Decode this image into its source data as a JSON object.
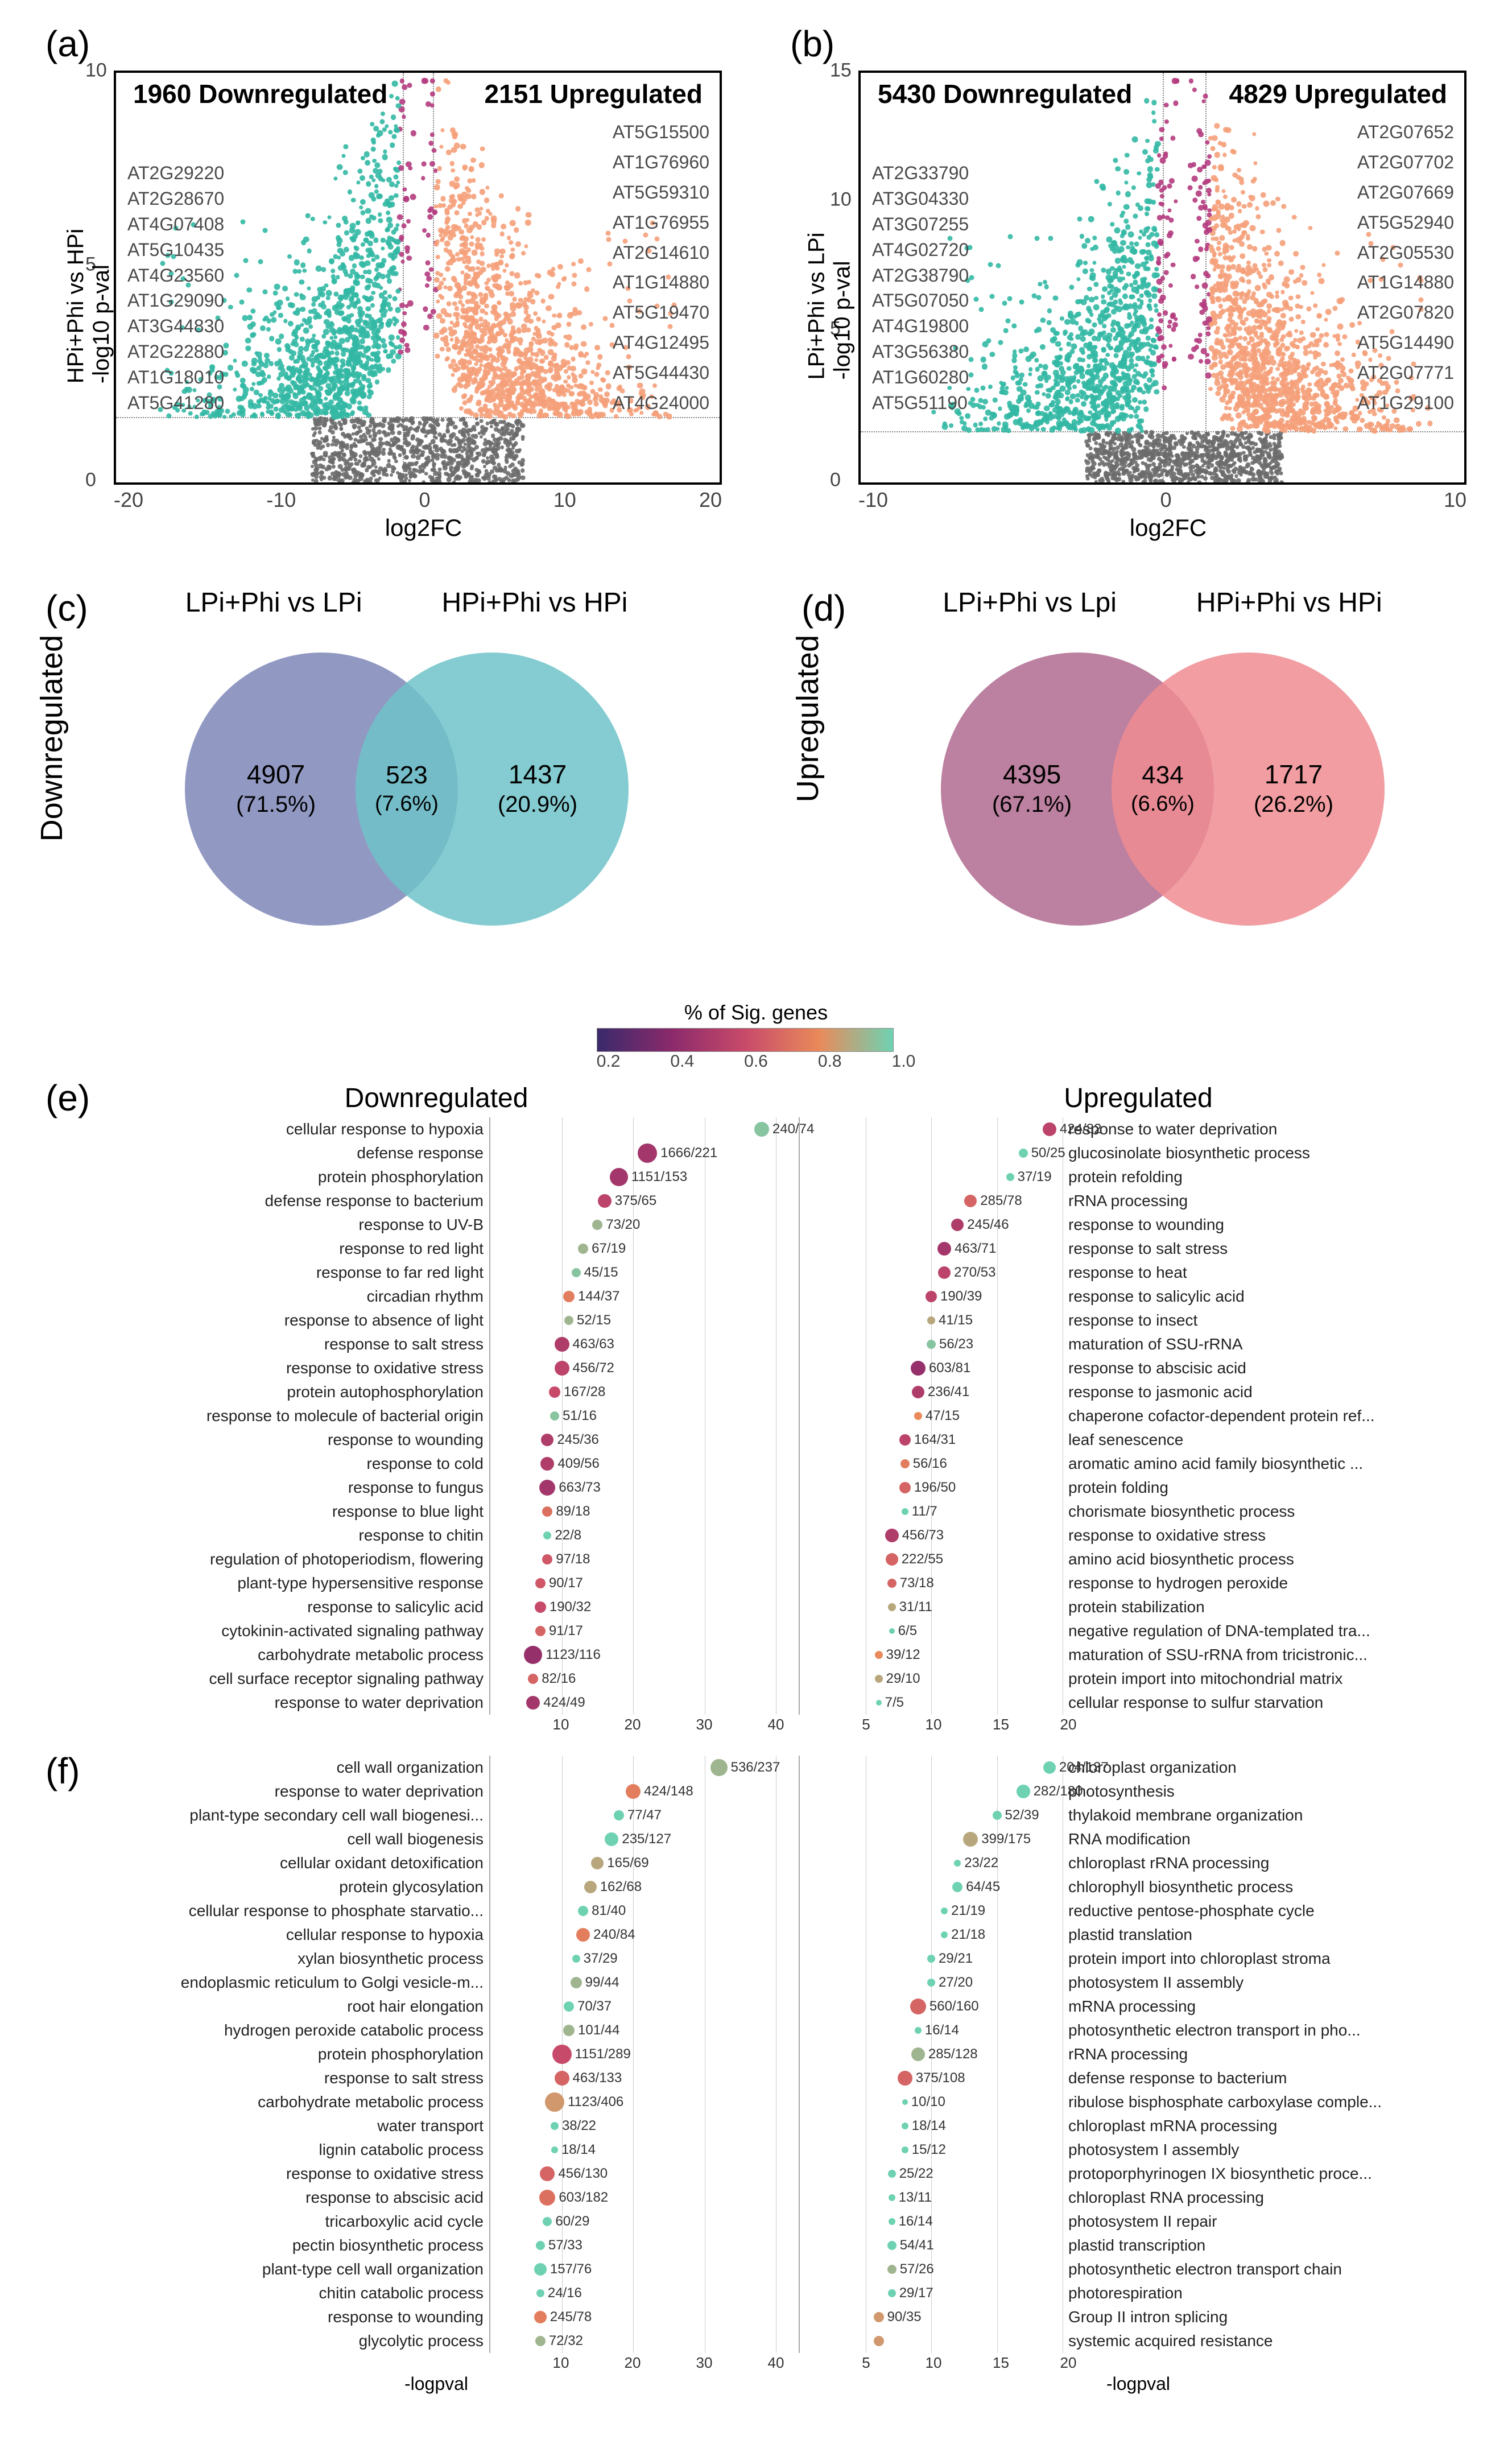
{
  "panels": {
    "a": "(a)",
    "b": "(b)",
    "c": "(c)",
    "d": "(d)",
    "e": "(e)",
    "f": "(f)"
  },
  "colors": {
    "volcano_down": "#32b8a4",
    "volcano_up": "#f5a07a",
    "volcano_mid": "#b43b7e",
    "volcano_ns": "#6b6b6b",
    "venn_c_left": "#7e87b8",
    "venn_c_right": "#6fc3c9",
    "venn_c_mid": "#5a99af",
    "venn_d_left": "#b06a8f",
    "venn_d_right": "#ef8c92",
    "venn_d_mid": "#c05a63",
    "go_gradient": [
      "#3a2a6b",
      "#8a2a6b",
      "#c84a6a",
      "#e98a5a",
      "#6ed2b2"
    ],
    "text": "#000000",
    "grid": "#cccccc"
  },
  "volcano_a": {
    "ylabel": "HPi+Phi vs HPi\n-log10 p-val",
    "xlabel": "log2FC",
    "down_title": "1960 Downregulated",
    "up_title": "2151 Upregulated",
    "xlim": [
      -20,
      20
    ],
    "xticks": [
      -20,
      -10,
      0,
      10,
      20
    ],
    "ylim": [
      0,
      12.5
    ],
    "yticks": [
      0,
      5,
      10
    ],
    "pval_threshold_y": 2.0,
    "fc_threshold_x": 1.0,
    "genes_left": [
      "AT2G29220",
      "AT2G28670",
      "AT4G07408",
      "AT5G10435",
      "AT4G23560",
      "AT1G29090",
      "AT3G44830",
      "AT2G22880",
      "AT1G18010",
      "AT5G41280"
    ],
    "genes_right": [
      "AT5G15500",
      "AT1G76960",
      "AT5G59310",
      "AT1G76955",
      "AT2G14610",
      "AT1G14880",
      "AT5G19470",
      "AT4G12495",
      "AT5G44430",
      "AT4G24000"
    ]
  },
  "volcano_b": {
    "ylabel": "LPi+Phi vs LPi\n-log10 p-val",
    "xlabel": "log2FC",
    "down_title": "5430 Downregulated",
    "up_title": "4829 Upregulated",
    "xlim": [
      -15,
      13
    ],
    "xticks": [
      -10,
      0,
      10
    ],
    "ylim": [
      0,
      16
    ],
    "yticks": [
      0,
      5,
      10,
      15
    ],
    "pval_threshold_y": 2.0,
    "fc_threshold_x": 1.0,
    "genes_left": [
      "AT2G33790",
      "AT3G04330",
      "AT3G07255",
      "AT4G02720",
      "AT2G38790",
      "AT5G07050",
      "AT4G19800",
      "AT3G56380",
      "AT1G60280",
      "AT5G51190"
    ],
    "genes_right": [
      "AT2G07652",
      "AT2G07702",
      "AT2G07669",
      "AT5G52940",
      "AT2G05530",
      "AT1G14880",
      "AT2G07820",
      "AT5G14490",
      "AT2G07771",
      "AT1G29100"
    ]
  },
  "venn_c": {
    "side_label": "Downregulated",
    "title_left": "LPi+Phi vs LPi",
    "title_right": "HPi+Phi vs HPi",
    "left": {
      "n": "4907",
      "pct": "(71.5%)"
    },
    "mid": {
      "n": "523",
      "pct": "(7.6%)"
    },
    "right": {
      "n": "1437",
      "pct": "(20.9%)"
    }
  },
  "venn_d": {
    "side_label": "Upregulated",
    "title_left": "LPi+Phi vs Lpi",
    "title_right": "HPi+Phi vs HPi",
    "left": {
      "n": "4395",
      "pct": "(67.1%)"
    },
    "mid": {
      "n": "434",
      "pct": "(6.6%)"
    },
    "right": {
      "n": "1717",
      "pct": "(26.2%)"
    }
  },
  "go_legend": {
    "title": "%  of Sig. genes",
    "stops": [
      0.2,
      0.4,
      0.6,
      0.8,
      1.0
    ]
  },
  "go_e": {
    "down_title": "Downregulated",
    "up_title": "Upregulated",
    "down_xmax": 40,
    "down_xticks": [
      10,
      20,
      30,
      40
    ],
    "up_xmax": 20,
    "up_xticks": [
      5,
      10,
      15,
      20
    ],
    "down": [
      {
        "label": "cellular response to hypoxia",
        "x": 38,
        "count": "240/74",
        "size": 26,
        "color": 0.95
      },
      {
        "label": "defense response",
        "x": 22,
        "count": "1666/221",
        "size": 34,
        "color": 0.35
      },
      {
        "label": "protein phosphorylation",
        "x": 18,
        "count": "1151/153",
        "size": 32,
        "color": 0.35
      },
      {
        "label": "defense response to bacterium",
        "x": 16,
        "count": "375/65",
        "size": 24,
        "color": 0.45
      },
      {
        "label": "response to UV-B",
        "x": 15,
        "count": "73/20",
        "size": 18,
        "color": 0.9
      },
      {
        "label": "response to red light",
        "x": 13,
        "count": "67/19",
        "size": 18,
        "color": 0.9
      },
      {
        "label": "response to far red light",
        "x": 12,
        "count": "45/15",
        "size": 16,
        "color": 0.95
      },
      {
        "label": "circadian rhythm",
        "x": 11,
        "count": "144/37",
        "size": 20,
        "color": 0.7
      },
      {
        "label": "response to absence of light",
        "x": 11,
        "count": "52/15",
        "size": 16,
        "color": 0.9
      },
      {
        "label": "response to salt stress",
        "x": 10,
        "count": "463/63",
        "size": 26,
        "color": 0.4
      },
      {
        "label": "response to oxidative stress",
        "x": 10,
        "count": "456/72",
        "size": 26,
        "color": 0.45
      },
      {
        "label": "protein autophosphorylation",
        "x": 9,
        "count": "167/28",
        "size": 20,
        "color": 0.5
      },
      {
        "label": "response to molecule of bacterial origin",
        "x": 9,
        "count": "51/16",
        "size": 16,
        "color": 0.95
      },
      {
        "label": "response to wounding",
        "x": 8,
        "count": "245/36",
        "size": 22,
        "color": 0.4
      },
      {
        "label": "response to cold",
        "x": 8,
        "count": "409/56",
        "size": 24,
        "color": 0.4
      },
      {
        "label": "response to fungus",
        "x": 8,
        "count": "663/73",
        "size": 28,
        "color": 0.35
      },
      {
        "label": "response to blue light",
        "x": 8,
        "count": "89/18",
        "size": 18,
        "color": 0.65
      },
      {
        "label": "response to chitin",
        "x": 8,
        "count": "22/8",
        "size": 14,
        "color": 1.0
      },
      {
        "label": "regulation of photoperiodism, flowering",
        "x": 8,
        "count": "97/18",
        "size": 18,
        "color": 0.55
      },
      {
        "label": "plant-type hypersensitive response",
        "x": 7,
        "count": "90/17",
        "size": 18,
        "color": 0.55
      },
      {
        "label": "response to salicylic acid",
        "x": 7,
        "count": "190/32",
        "size": 20,
        "color": 0.5
      },
      {
        "label": "cytokinin-activated signaling pathway",
        "x": 7,
        "count": "91/17",
        "size": 18,
        "color": 0.6
      },
      {
        "label": "carbohydrate metabolic process",
        "x": 6,
        "count": "1123/116",
        "size": 32,
        "color": 0.3
      },
      {
        "label": "cell surface receptor signaling pathway",
        "x": 6,
        "count": "82/16",
        "size": 18,
        "color": 0.6
      },
      {
        "label": "response to water deprivation",
        "x": 6,
        "count": "424/49",
        "size": 24,
        "color": 0.35
      }
    ],
    "up": [
      {
        "label": "response to water deprivation",
        "x": 19,
        "count": "424/82",
        "size": 24,
        "color": 0.45
      },
      {
        "label": "glucosinolate biosynthetic process",
        "x": 17,
        "count": "50/25",
        "size": 16,
        "color": 1.0
      },
      {
        "label": "protein refolding",
        "x": 16,
        "count": "37/19",
        "size": 14,
        "color": 1.0
      },
      {
        "label": "rRNA processing",
        "x": 13,
        "count": "285/78",
        "size": 22,
        "color": 0.6
      },
      {
        "label": "response to wounding",
        "x": 12,
        "count": "245/46",
        "size": 22,
        "color": 0.4
      },
      {
        "label": "response to salt stress",
        "x": 11,
        "count": "463/71",
        "size": 24,
        "color": 0.35
      },
      {
        "label": "response to heat",
        "x": 11,
        "count": "270/53",
        "size": 22,
        "color": 0.45
      },
      {
        "label": "response to salicylic acid",
        "x": 10,
        "count": "190/39",
        "size": 20,
        "color": 0.45
      },
      {
        "label": "response to insect",
        "x": 10,
        "count": "41/15",
        "size": 14,
        "color": 0.85
      },
      {
        "label": "maturation of SSU-rRNA",
        "x": 10,
        "count": "56/23",
        "size": 16,
        "color": 0.95
      },
      {
        "label": "response to abscisic acid",
        "x": 9,
        "count": "603/81",
        "size": 26,
        "color": 0.3
      },
      {
        "label": "response to jasmonic acid",
        "x": 9,
        "count": "236/41",
        "size": 22,
        "color": 0.4
      },
      {
        "label": "chaperone cofactor-dependent protein ref...",
        "x": 9,
        "count": "47/15",
        "size": 14,
        "color": 0.75
      },
      {
        "label": "leaf senescence",
        "x": 8,
        "count": "164/31",
        "size": 20,
        "color": 0.45
      },
      {
        "label": "aromatic amino acid family biosynthetic ...",
        "x": 8,
        "count": "56/16",
        "size": 16,
        "color": 0.7
      },
      {
        "label": "protein folding",
        "x": 8,
        "count": "196/50",
        "size": 20,
        "color": 0.6
      },
      {
        "label": "chorismate biosynthetic process",
        "x": 8,
        "count": "11/7",
        "size": 12,
        "color": 1.0
      },
      {
        "label": "response to oxidative stress",
        "x": 7,
        "count": "456/73",
        "size": 24,
        "color": 0.4
      },
      {
        "label": "amino acid biosynthetic process",
        "x": 7,
        "count": "222/55",
        "size": 22,
        "color": 0.6
      },
      {
        "label": "response to hydrogen peroxide",
        "x": 7,
        "count": "73/18",
        "size": 16,
        "color": 0.6
      },
      {
        "label": "protein stabilization",
        "x": 7,
        "count": "31/11",
        "size": 14,
        "color": 0.85
      },
      {
        "label": "negative regulation of DNA-templated tra...",
        "x": 7,
        "count": "6/5",
        "size": 10,
        "color": 1.0
      },
      {
        "label": "maturation of SSU-rRNA from tricistronic...",
        "x": 6,
        "count": "39/12",
        "size": 14,
        "color": 0.75
      },
      {
        "label": "protein import into mitochondrial matrix",
        "x": 6,
        "count": "29/10",
        "size": 14,
        "color": 0.85
      },
      {
        "label": "cellular response to sulfur starvation",
        "x": 6,
        "count": "7/5",
        "size": 10,
        "color": 1.0
      }
    ]
  },
  "go_f": {
    "down_xmax": 40,
    "down_xticks": [
      10,
      20,
      30,
      40
    ],
    "up_xmax": 20,
    "up_xticks": [
      5,
      10,
      15,
      20
    ],
    "xlabel": "-logpval",
    "down": [
      {
        "label": "cell wall organization",
        "x": 32,
        "count": "536/237",
        "size": 30,
        "color": 0.9
      },
      {
        "label": "response to water deprivation",
        "x": 20,
        "count": "424/148",
        "size": 26,
        "color": 0.7
      },
      {
        "label": "plant-type secondary cell wall biogenesi...",
        "x": 18,
        "count": "77/47",
        "size": 18,
        "color": 1.0
      },
      {
        "label": "cell wall biogenesis",
        "x": 17,
        "count": "235/127",
        "size": 24,
        "color": 1.0
      },
      {
        "label": "cellular oxidant detoxification",
        "x": 15,
        "count": "165/69",
        "size": 22,
        "color": 0.85
      },
      {
        "label": "protein glycosylation",
        "x": 14,
        "count": "162/68",
        "size": 22,
        "color": 0.85
      },
      {
        "label": "cellular response to phosphate starvatio...",
        "x": 13,
        "count": "81/40",
        "size": 18,
        "color": 1.0
      },
      {
        "label": "cellular response to hypoxia",
        "x": 13,
        "count": "240/84",
        "size": 24,
        "color": 0.7
      },
      {
        "label": "xylan biosynthetic process",
        "x": 12,
        "count": "37/29",
        "size": 14,
        "color": 1.0
      },
      {
        "label": "endoplasmic reticulum to Golgi vesicle-m...",
        "x": 12,
        "count": "99/44",
        "size": 20,
        "color": 0.9
      },
      {
        "label": "root hair elongation",
        "x": 11,
        "count": "70/37",
        "size": 18,
        "color": 1.0
      },
      {
        "label": "hydrogen peroxide catabolic process",
        "x": 11,
        "count": "101/44",
        "size": 20,
        "color": 0.9
      },
      {
        "label": "protein phosphorylation",
        "x": 10,
        "count": "1151/289",
        "size": 34,
        "color": 0.5
      },
      {
        "label": "response to salt stress",
        "x": 10,
        "count": "463/133",
        "size": 26,
        "color": 0.6
      },
      {
        "label": "carbohydrate metabolic process",
        "x": 9,
        "count": "1123/406",
        "size": 34,
        "color": 0.8
      },
      {
        "label": "water transport",
        "x": 9,
        "count": "38/22",
        "size": 14,
        "color": 1.0
      },
      {
        "label": "lignin catabolic process",
        "x": 9,
        "count": "18/14",
        "size": 12,
        "color": 1.0
      },
      {
        "label": "response to oxidative stress",
        "x": 8,
        "count": "456/130",
        "size": 26,
        "color": 0.6
      },
      {
        "label": "response to abscisic acid",
        "x": 8,
        "count": "603/182",
        "size": 28,
        "color": 0.65
      },
      {
        "label": "tricarboxylic acid cycle",
        "x": 8,
        "count": "60/29",
        "size": 16,
        "color": 1.0
      },
      {
        "label": "pectin biosynthetic process",
        "x": 7,
        "count": "57/33",
        "size": 16,
        "color": 1.0
      },
      {
        "label": "plant-type cell wall organization",
        "x": 7,
        "count": "157/76",
        "size": 22,
        "color": 1.0
      },
      {
        "label": "chitin catabolic process",
        "x": 7,
        "count": "24/16",
        "size": 14,
        "color": 1.0
      },
      {
        "label": "response to wounding",
        "x": 7,
        "count": "245/78",
        "size": 22,
        "color": 0.7
      },
      {
        "label": "glycolytic process",
        "x": 7,
        "count": "72/32",
        "size": 18,
        "color": 0.9
      }
    ],
    "up": [
      {
        "label": "chloroplast organization",
        "x": 19,
        "count": "204/137",
        "size": 22,
        "color": 1.0
      },
      {
        "label": "photosynthesis",
        "x": 17,
        "count": "282/180",
        "size": 24,
        "color": 1.0
      },
      {
        "label": "thylakoid membrane organization",
        "x": 15,
        "count": "52/39",
        "size": 16,
        "color": 1.0
      },
      {
        "label": "RNA modification",
        "x": 13,
        "count": "399/175",
        "size": 26,
        "color": 0.85
      },
      {
        "label": "chloroplast rRNA processing",
        "x": 12,
        "count": "23/22",
        "size": 12,
        "color": 1.0
      },
      {
        "label": "chlorophyll biosynthetic process",
        "x": 12,
        "count": "64/45",
        "size": 18,
        "color": 1.0
      },
      {
        "label": "reductive pentose-phosphate cycle",
        "x": 11,
        "count": "21/19",
        "size": 12,
        "color": 1.0
      },
      {
        "label": "plastid translation",
        "x": 11,
        "count": "21/18",
        "size": 12,
        "color": 1.0
      },
      {
        "label": "protein import into chloroplast stroma",
        "x": 10,
        "count": "29/21",
        "size": 14,
        "color": 1.0
      },
      {
        "label": "photosystem II assembly",
        "x": 10,
        "count": "27/20",
        "size": 14,
        "color": 1.0
      },
      {
        "label": "mRNA processing",
        "x": 9,
        "count": "560/160",
        "size": 28,
        "color": 0.6
      },
      {
        "label": "photosynthetic electron transport in pho...",
        "x": 9,
        "count": "16/14",
        "size": 12,
        "color": 1.0
      },
      {
        "label": "rRNA processing",
        "x": 9,
        "count": "285/128",
        "size": 24,
        "color": 0.9
      },
      {
        "label": "defense response to bacterium",
        "x": 8,
        "count": "375/108",
        "size": 26,
        "color": 0.6
      },
      {
        "label": "ribulose bisphosphate carboxylase comple...",
        "x": 8,
        "count": "10/10",
        "size": 10,
        "color": 1.0
      },
      {
        "label": "chloroplast mRNA processing",
        "x": 8,
        "count": "18/14",
        "size": 12,
        "color": 1.0
      },
      {
        "label": "photosystem I assembly",
        "x": 8,
        "count": "15/12",
        "size": 12,
        "color": 1.0
      },
      {
        "label": "protoporphyrinogen IX biosynthetic proce...",
        "x": 7,
        "count": "25/22",
        "size": 14,
        "color": 1.0
      },
      {
        "label": "chloroplast RNA processing",
        "x": 7,
        "count": "13/11",
        "size": 12,
        "color": 1.0
      },
      {
        "label": "photosystem II repair",
        "x": 7,
        "count": "16/14",
        "size": 12,
        "color": 1.0
      },
      {
        "label": "plastid transcription",
        "x": 7,
        "count": "54/41",
        "size": 16,
        "color": 1.0
      },
      {
        "label": "photosynthetic electron transport chain",
        "x": 7,
        "count": "57/26",
        "size": 16,
        "color": 0.9
      },
      {
        "label": "photorespiration",
        "x": 7,
        "count": "29/17",
        "size": 14,
        "color": 1.0
      },
      {
        "label": "Group II intron splicing",
        "x": 6,
        "count": "90/35",
        "size": 18,
        "color": 0.8
      },
      {
        "label": "systemic acquired resistance",
        "x": 6,
        "count": "",
        "size": 18,
        "color": 0.8
      }
    ]
  }
}
